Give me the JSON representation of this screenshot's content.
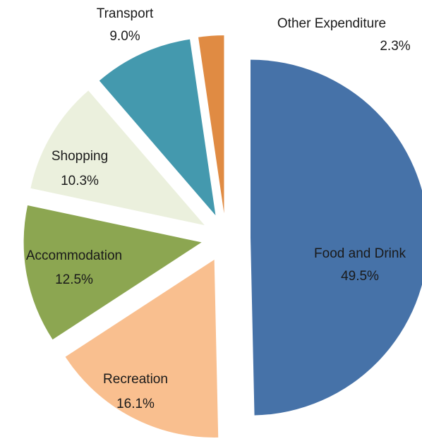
{
  "chart_data": {
    "type": "pie",
    "categories": [
      "Food and Drink",
      "Recreation",
      "Accommodation",
      "Shopping",
      "Transport",
      "Other Expenditure"
    ],
    "values": [
      49.5,
      16.1,
      12.5,
      10.3,
      9.0,
      2.3
    ],
    "value_labels": [
      "49.5%",
      "16.1%",
      "12.5%",
      "10.3%",
      "9.0%",
      "2.3%"
    ],
    "colors": [
      "#4672a8",
      "#f9bf8f",
      "#8ca651",
      "#ebf0dd",
      "#4499ae",
      "#e08b43"
    ]
  }
}
